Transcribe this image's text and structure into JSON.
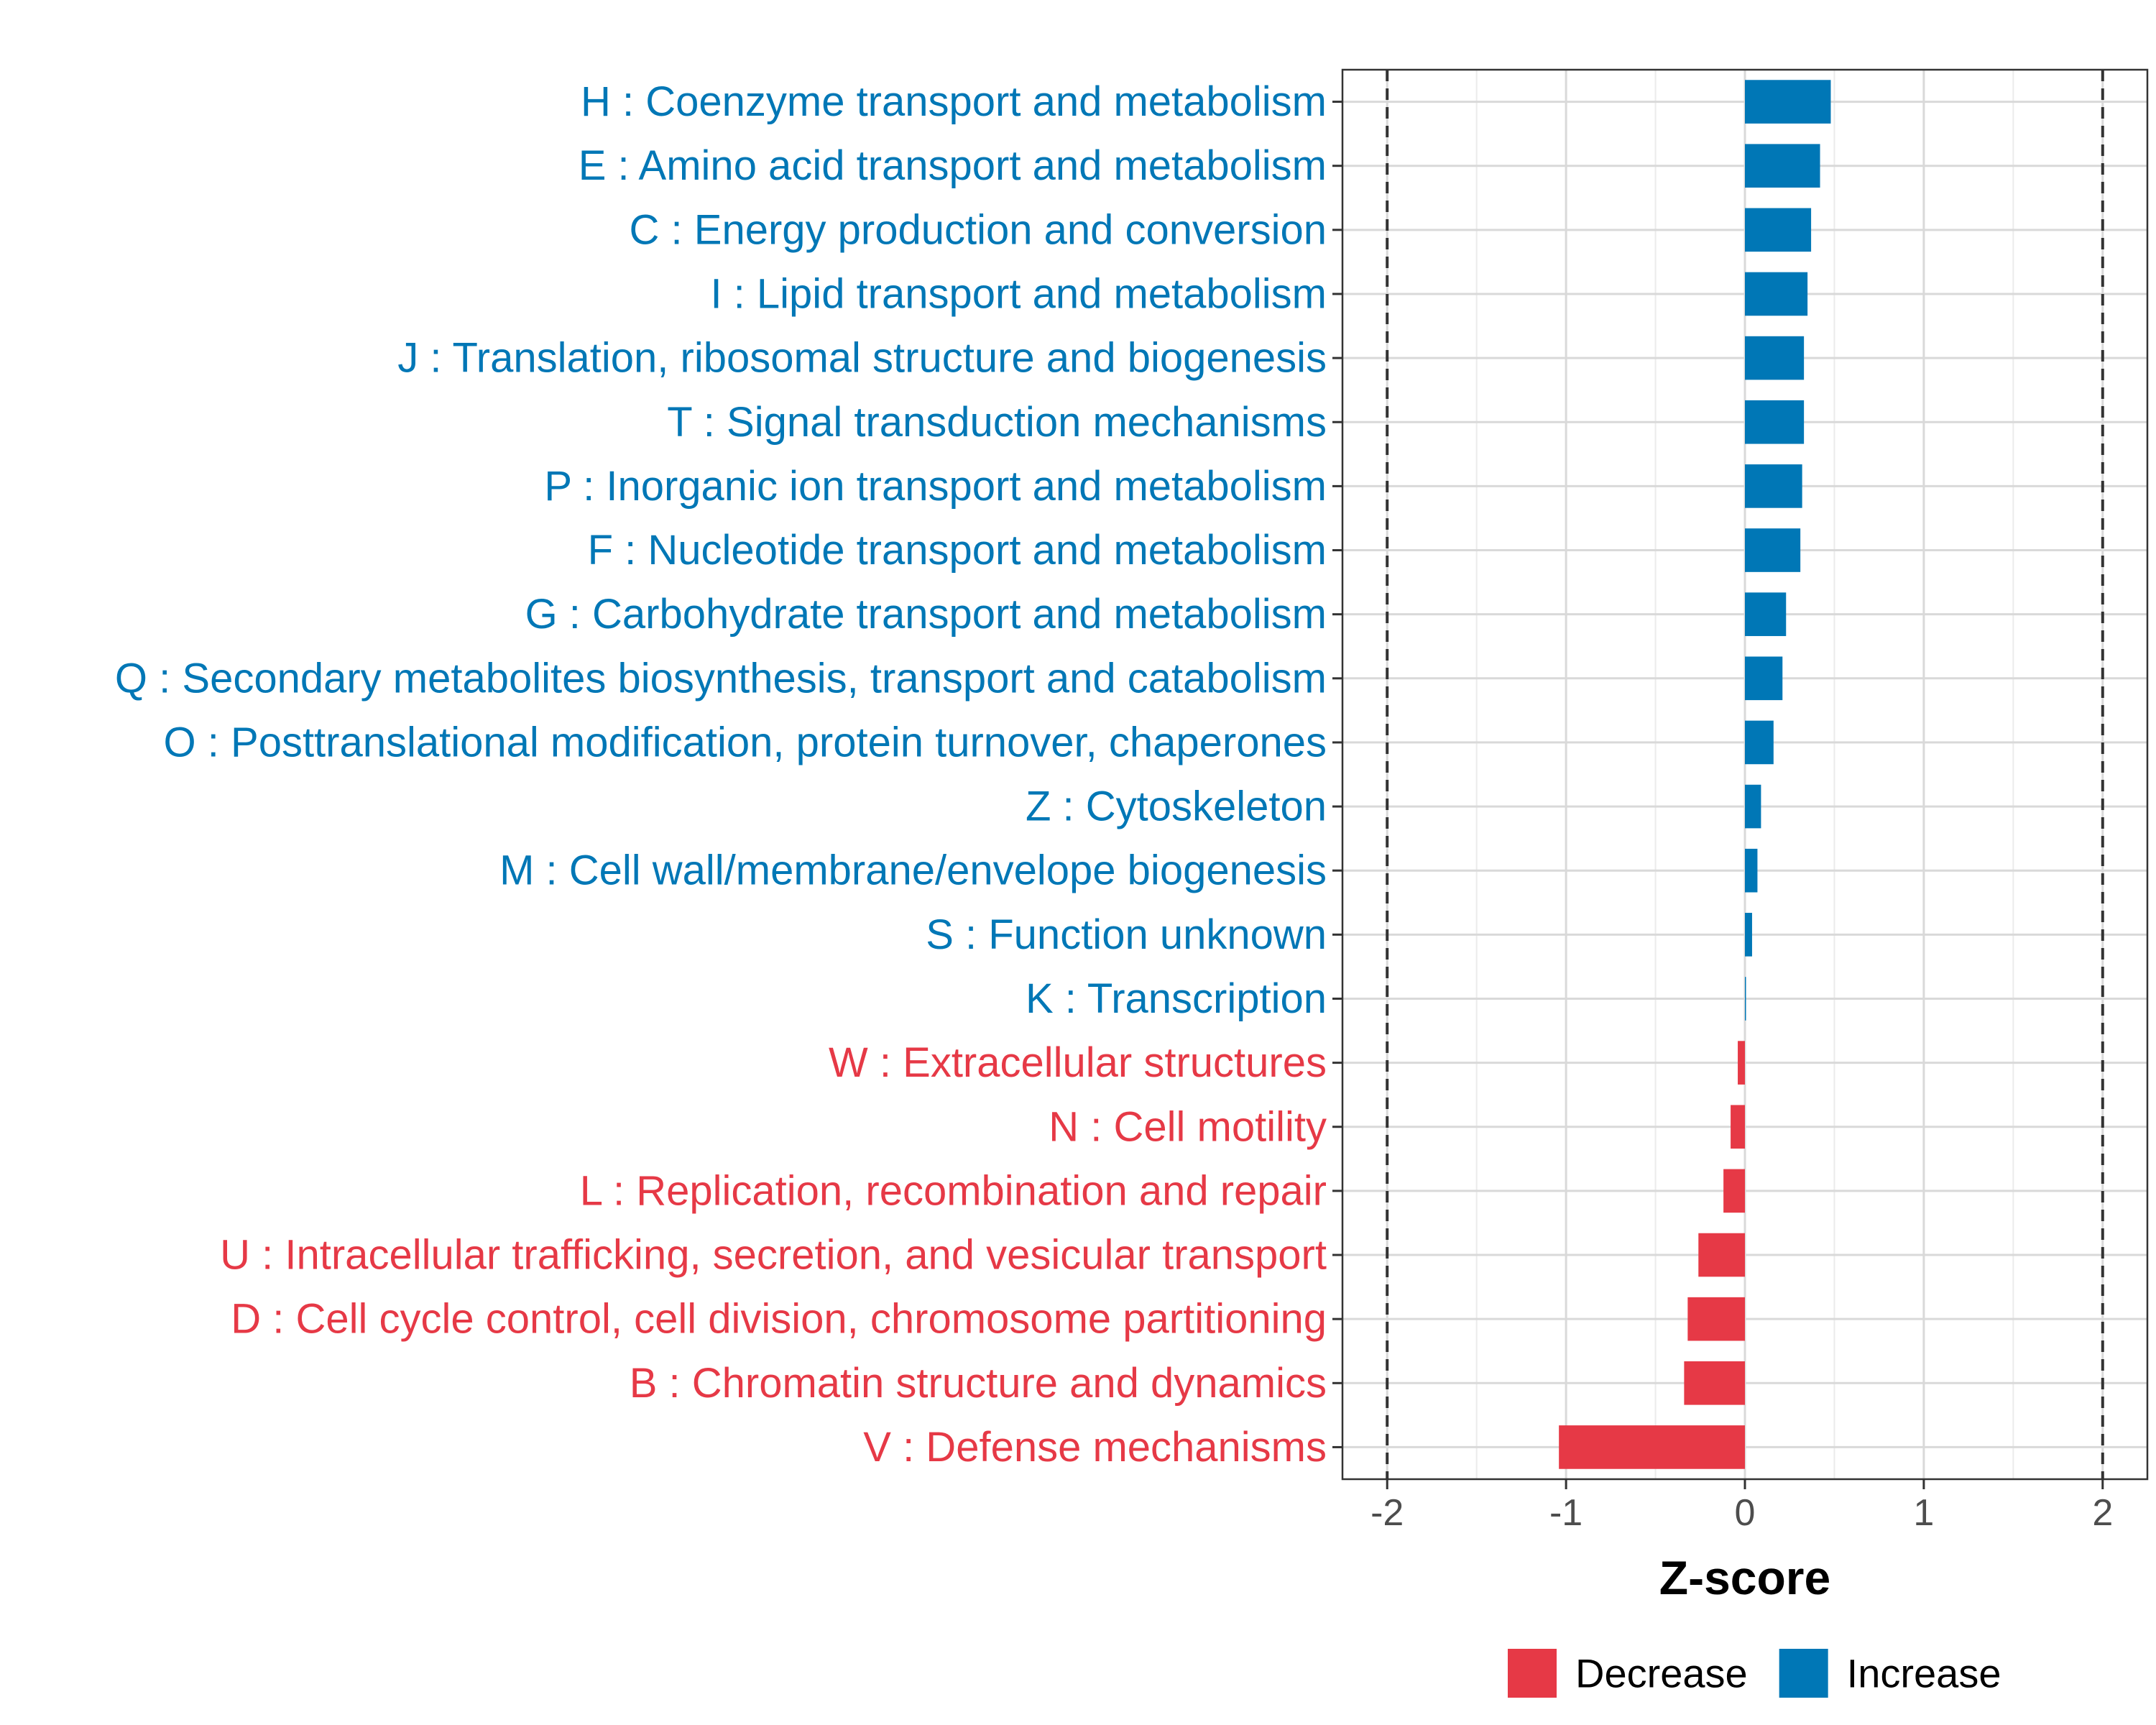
{
  "chart_data": {
    "type": "bar",
    "orientation": "horizontal",
    "xlabel": "Z-score",
    "xlim": [
      -2.25,
      2.25
    ],
    "xticks": [
      -2,
      -1,
      0,
      1,
      2
    ],
    "xtick_labels": [
      "-2",
      "-1",
      "0",
      "1",
      "2"
    ],
    "threshold_lines": [
      -2,
      2
    ],
    "grid": true,
    "legend_position": "bottom",
    "legend": [
      {
        "name": "Decrease",
        "color": "#E63946"
      },
      {
        "name": "Increase",
        "color": "#0077B6"
      }
    ],
    "colors": {
      "Decrease": "#E63946",
      "Increase": "#0077B6"
    },
    "categories": [
      "H : Coenzyme transport and metabolism",
      "E : Amino acid transport and metabolism",
      "C : Energy production and conversion",
      "I : Lipid transport and metabolism",
      "J : Translation, ribosomal structure and biogenesis",
      "T : Signal transduction mechanisms",
      "P : Inorganic ion transport and metabolism",
      "F : Nucleotide transport and metabolism",
      "G : Carbohydrate transport and metabolism",
      "Q : Secondary metabolites biosynthesis, transport and catabolism",
      "O : Posttranslational modification, protein turnover, chaperones",
      "Z : Cytoskeleton",
      "M : Cell wall/membrane/envelope biogenesis",
      "S : Function unknown",
      "K : Transcription",
      "W : Extracellular structures",
      "N : Cell motility",
      "L : Replication, recombination and repair",
      "U : Intracellular trafficking, secretion, and vesicular transport",
      "D : Cell cycle control, cell division, chromosome partitioning",
      "B : Chromatin structure and dynamics",
      "V : Defense mechanisms"
    ],
    "values": [
      0.48,
      0.42,
      0.37,
      0.35,
      0.33,
      0.33,
      0.32,
      0.31,
      0.23,
      0.21,
      0.16,
      0.09,
      0.07,
      0.04,
      0.005,
      -0.04,
      -0.08,
      -0.12,
      -0.26,
      -0.32,
      -0.34,
      -1.04
    ],
    "direction": [
      "Increase",
      "Increase",
      "Increase",
      "Increase",
      "Increase",
      "Increase",
      "Increase",
      "Increase",
      "Increase",
      "Increase",
      "Increase",
      "Increase",
      "Increase",
      "Increase",
      "Increase",
      "Decrease",
      "Decrease",
      "Decrease",
      "Decrease",
      "Decrease",
      "Decrease",
      "Decrease"
    ]
  }
}
